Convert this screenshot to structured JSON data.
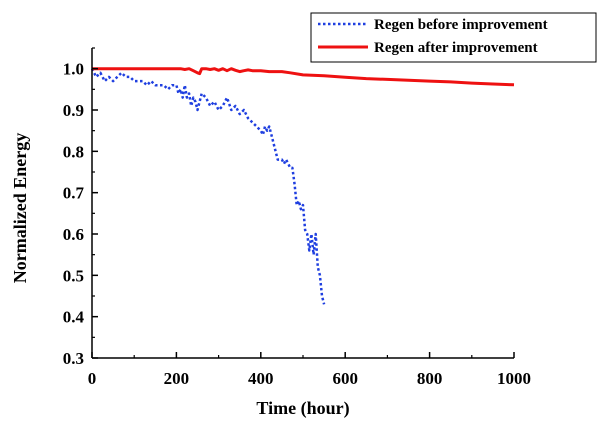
{
  "chart_data": {
    "type": "line",
    "title": "",
    "xlabel": "Time (hour)",
    "ylabel": "Normalized Energy",
    "xlim": [
      0,
      1000
    ],
    "ylim": [
      0.3,
      1.05
    ],
    "xticks": [
      0,
      200,
      400,
      600,
      800,
      1000
    ],
    "xtick_labels": [
      "0",
      "200",
      "400",
      "600",
      "800",
      "1000"
    ],
    "yticks": [
      0.3,
      0.4,
      0.5,
      0.6,
      0.7,
      0.8,
      0.9,
      1.0
    ],
    "ytick_labels": [
      "0.3",
      "0.4",
      "0.5",
      "0.6",
      "0.7",
      "0.8",
      "0.9",
      "1.0"
    ],
    "grid": false,
    "legend_position": "top-right",
    "series": [
      {
        "name": "Regen before improvement",
        "color": "#1f3fe0",
        "style": "dotted",
        "x": [
          0,
          10,
          20,
          30,
          40,
          50,
          60,
          70,
          80,
          90,
          100,
          110,
          120,
          130,
          140,
          150,
          160,
          170,
          180,
          190,
          200,
          205,
          210,
          215,
          220,
          225,
          230,
          235,
          240,
          245,
          250,
          255,
          260,
          270,
          280,
          290,
          300,
          310,
          320,
          330,
          340,
          350,
          360,
          370,
          380,
          390,
          400,
          405,
          410,
          415,
          420,
          425,
          430,
          440,
          450,
          455,
          460,
          470,
          475,
          480,
          485,
          490,
          495,
          500,
          505,
          510,
          515,
          520,
          525,
          530,
          535,
          540,
          545,
          550
        ],
        "y": [
          1.0,
          0.98,
          0.99,
          0.97,
          0.98,
          0.97,
          0.98,
          0.99,
          0.98,
          0.98,
          0.97,
          0.97,
          0.97,
          0.96,
          0.97,
          0.96,
          0.96,
          0.96,
          0.95,
          0.96,
          0.96,
          0.94,
          0.95,
          0.93,
          0.96,
          0.93,
          0.94,
          0.91,
          0.93,
          0.92,
          0.9,
          0.92,
          0.94,
          0.93,
          0.91,
          0.92,
          0.9,
          0.91,
          0.93,
          0.9,
          0.91,
          0.89,
          0.9,
          0.88,
          0.87,
          0.86,
          0.85,
          0.84,
          0.86,
          0.85,
          0.86,
          0.84,
          0.82,
          0.78,
          0.78,
          0.77,
          0.78,
          0.76,
          0.76,
          0.72,
          0.67,
          0.68,
          0.66,
          0.67,
          0.61,
          0.6,
          0.56,
          0.6,
          0.55,
          0.6,
          0.52,
          0.5,
          0.45,
          0.43
        ]
      },
      {
        "name": "Regen after improvement",
        "color": "#ee1111",
        "style": "solid",
        "x": [
          0,
          100,
          190,
          200,
          210,
          220,
          230,
          240,
          250,
          255,
          260,
          270,
          280,
          290,
          300,
          310,
          320,
          330,
          340,
          350,
          360,
          370,
          380,
          400,
          420,
          450,
          470,
          500,
          550,
          600,
          650,
          700,
          750,
          800,
          850,
          900,
          950,
          1000
        ],
        "y": [
          1.0,
          1.0,
          1.0,
          1.0,
          1.0,
          0.998,
          1.0,
          0.995,
          0.99,
          0.988,
          1.0,
          1.0,
          0.998,
          1.0,
          0.996,
          1.0,
          0.995,
          1.0,
          0.996,
          0.993,
          0.995,
          0.997,
          0.995,
          0.995,
          0.993,
          0.993,
          0.99,
          0.985,
          0.983,
          0.979,
          0.976,
          0.974,
          0.972,
          0.97,
          0.968,
          0.965,
          0.963,
          0.961
        ]
      }
    ]
  }
}
